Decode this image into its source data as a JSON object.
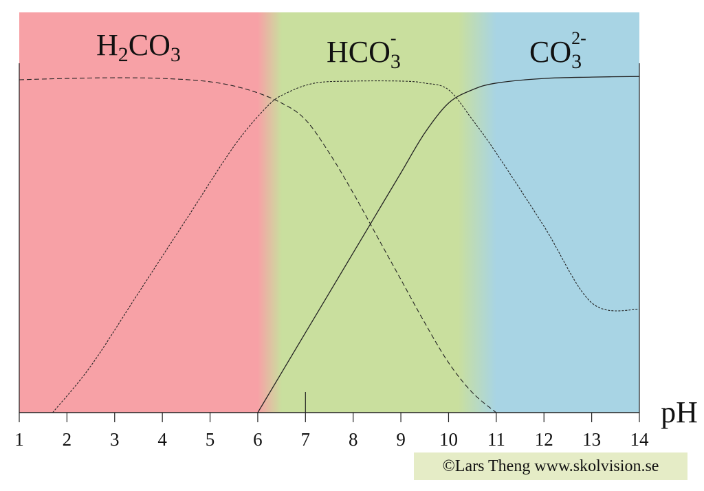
{
  "chart_data": {
    "type": "line",
    "title": "",
    "xlabel": "pH",
    "ylabel": "",
    "xlim": [
      1,
      14
    ],
    "ylim": [
      0,
      100
    ],
    "x_ticks": [
      1,
      2,
      3,
      4,
      5,
      6,
      7,
      8,
      9,
      10,
      11,
      12,
      13,
      14
    ],
    "grid": false,
    "background_bands": [
      {
        "from": 1,
        "to": 6.0,
        "color": "#f7a1a6"
      },
      {
        "from": 6.5,
        "to": 10.2,
        "color": "#c9df9e"
      },
      {
        "from": 11,
        "to": 14,
        "color": "#a8d4e4"
      }
    ],
    "series": [
      {
        "name": "H2CO3",
        "label": {
          "base": "H",
          "sub1": "2",
          "mid": "CO",
          "sub2": "3",
          "sup": ""
        },
        "style": "dashed",
        "points": [
          [
            1,
            100
          ],
          [
            2,
            100.4
          ],
          [
            3,
            100.6
          ],
          [
            4,
            100.4
          ],
          [
            5,
            99.4
          ],
          [
            5.8,
            97
          ],
          [
            6.5,
            93
          ],
          [
            7,
            88
          ],
          [
            7.5,
            78
          ],
          [
            8,
            66
          ],
          [
            8.5,
            53
          ],
          [
            9,
            40
          ],
          [
            9.5,
            27
          ],
          [
            10,
            15
          ],
          [
            10.5,
            6
          ],
          [
            11,
            0
          ]
        ]
      },
      {
        "name": "HCO3-",
        "label": {
          "base": "HCO",
          "sub1": "",
          "mid": "",
          "sub2": "3",
          "sup": "-"
        },
        "style": "dotted",
        "points": [
          [
            1.7,
            0
          ],
          [
            2.5,
            14
          ],
          [
            3.5,
            36
          ],
          [
            4.5,
            58
          ],
          [
            5.5,
            80
          ],
          [
            6.2,
            92
          ],
          [
            6.6,
            96
          ],
          [
            7.2,
            99
          ],
          [
            8,
            99.6
          ],
          [
            9,
            99.6
          ],
          [
            9.5,
            99
          ],
          [
            10,
            97
          ],
          [
            10.5,
            88
          ],
          [
            11,
            78
          ],
          [
            12,
            56
          ],
          [
            13,
            33
          ],
          [
            14,
            31
          ]
        ]
      },
      {
        "name": "CO3 2-",
        "label": {
          "base": "CO",
          "sub1": "",
          "mid": "",
          "sub2": "3",
          "sup": "2-"
        },
        "style": "solid",
        "points": [
          [
            6,
            0
          ],
          [
            6.5,
            12
          ],
          [
            7,
            24
          ],
          [
            7.5,
            36
          ],
          [
            8,
            48
          ],
          [
            8.5,
            60
          ],
          [
            9,
            72
          ],
          [
            9.5,
            84
          ],
          [
            10,
            93
          ],
          [
            10.5,
            97
          ],
          [
            11,
            99
          ],
          [
            12,
            100.4
          ],
          [
            13,
            100.8
          ],
          [
            14,
            101
          ]
        ]
      }
    ]
  },
  "credit": "©Lars Theng www.skolvision.se"
}
